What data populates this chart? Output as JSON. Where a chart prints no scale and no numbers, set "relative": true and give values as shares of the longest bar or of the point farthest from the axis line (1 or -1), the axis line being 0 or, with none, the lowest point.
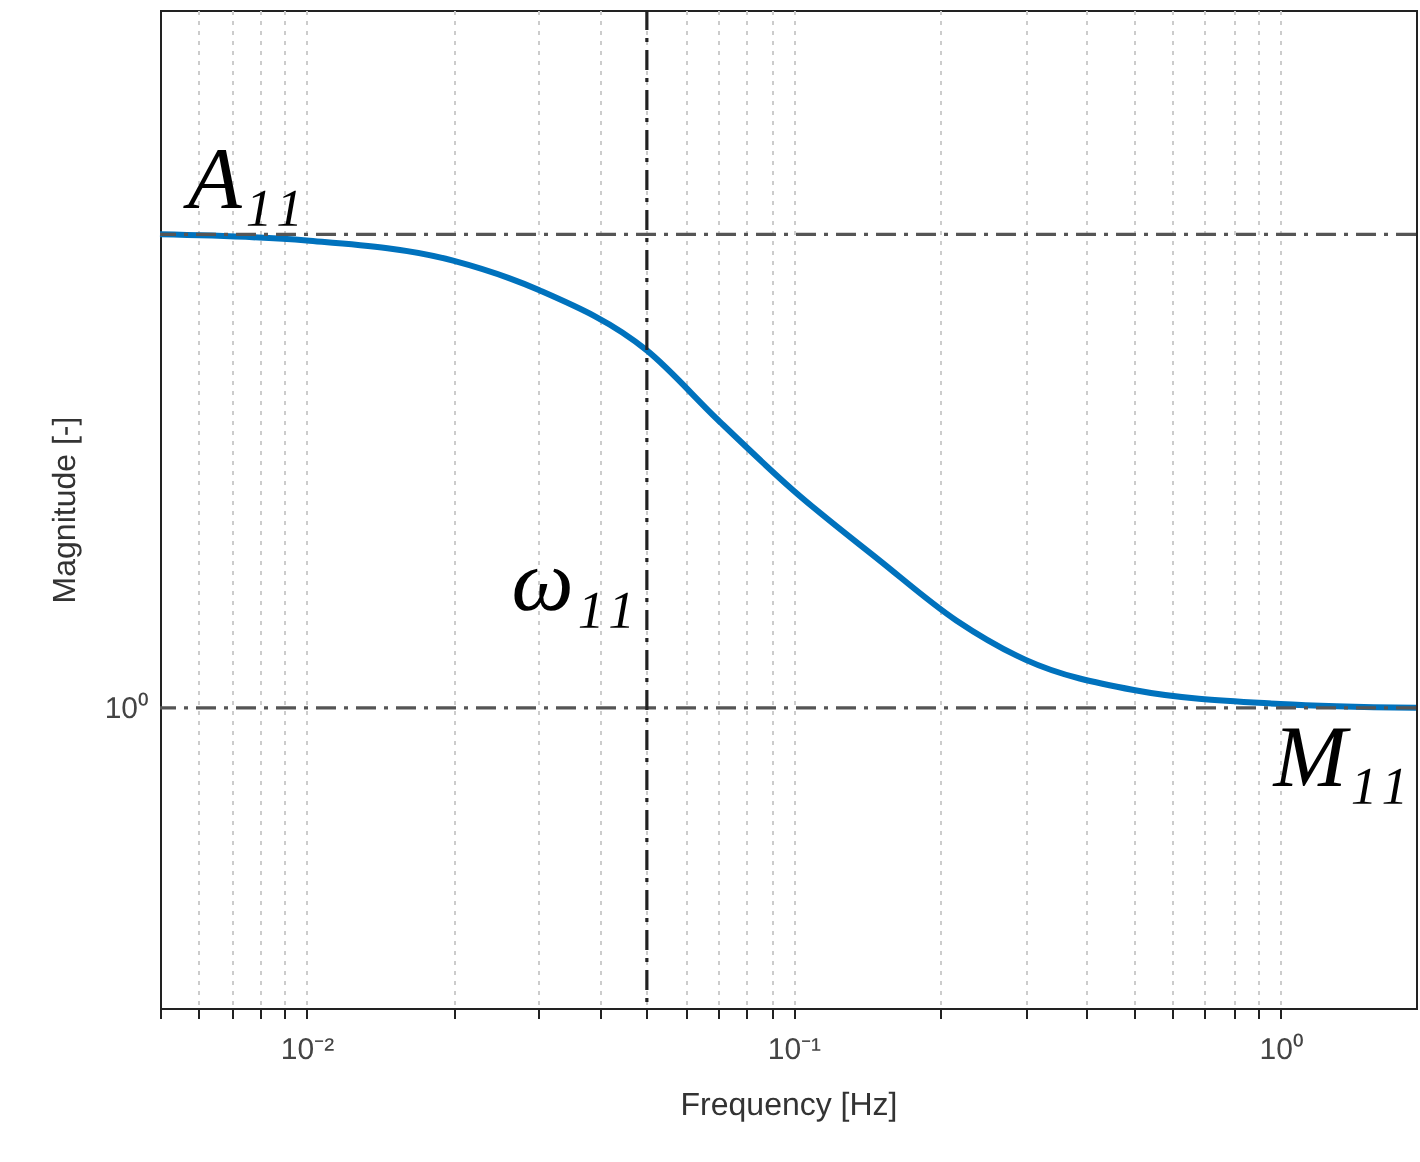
{
  "chart_data": {
    "type": "line",
    "relative": true,
    "xlabel": "Frequency [Hz]",
    "ylabel": "Magnitude [-]",
    "log": "x",
    "grid": "x",
    "line_style": "solid",
    "marker": "none",
    "x": [
      0.005,
      0.01,
      0.02,
      0.03,
      0.05,
      0.07,
      0.1,
      0.15,
      0.216,
      0.3,
      0.5,
      1,
      1.9
    ],
    "series": [
      {
        "color": "#0072bd",
        "values": [
          1,
          0.992,
          0.966,
          0.928,
          0.85,
          0.76,
          0.669,
          0.579,
          0.501,
          0.45,
          0.411,
          0.393,
          0.388
        ]
      }
    ],
    "xlim": [
      0.005,
      1.9
    ],
    "xticks": [
      {
        "value": 0.005,
        "label": null
      },
      {
        "value": 0.006,
        "label": null
      },
      {
        "value": 0.007,
        "label": null
      },
      {
        "value": 0.008,
        "label": null
      },
      {
        "value": 0.009,
        "label": null
      },
      {
        "value": 0.01,
        "label": "10⁻²"
      },
      {
        "value": 0.02,
        "label": null
      },
      {
        "value": 0.03,
        "label": null
      },
      {
        "value": 0.04,
        "label": null
      },
      {
        "value": 0.05,
        "label": null
      },
      {
        "value": 0.06,
        "label": null
      },
      {
        "value": 0.07,
        "label": null
      },
      {
        "value": 0.08,
        "label": null
      },
      {
        "value": 0.09,
        "label": null
      },
      {
        "value": 0.1,
        "label": "10⁻¹"
      },
      {
        "value": 0.2,
        "label": null
      },
      {
        "value": 0.3,
        "label": null
      },
      {
        "value": 0.4,
        "label": null
      },
      {
        "value": 0.5,
        "label": null
      },
      {
        "value": 0.6,
        "label": null
      },
      {
        "value": 0.7,
        "label": null
      },
      {
        "value": 0.8,
        "label": null
      },
      {
        "value": 0.9,
        "label": null
      },
      {
        "value": 1,
        "label": "10⁰"
      }
    ],
    "ref_lines": [
      {
        "axis": "y",
        "value": 1,
        "label": "A₁₁",
        "color": "#555555",
        "line_style": "dashdot"
      },
      {
        "axis": "y",
        "value": 0.388,
        "label": "M₁₁",
        "color": "#555555",
        "line_style": "dashdot"
      },
      {
        "axis": "x",
        "value": 0.05,
        "label": "ω₁₁",
        "color": "#222222",
        "line_style": "dashdot"
      }
    ],
    "annotations": [
      "10⁰"
    ]
  }
}
